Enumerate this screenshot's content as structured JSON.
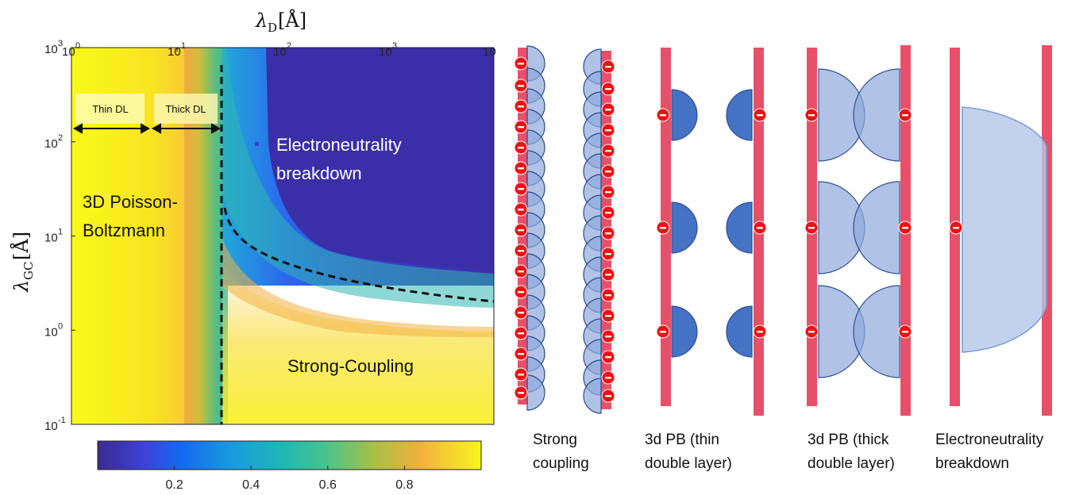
{
  "chart_data": {
    "type": "heatmap",
    "xlabel_symbol": "λ",
    "xlabel_sub": "D",
    "xlabel_unit": "[Å]",
    "ylabel_symbol": "λ",
    "ylabel_sub": "GC",
    "ylabel_unit": "[Å]",
    "xscale": "log",
    "yscale": "log",
    "xlim": [
      1,
      10000
    ],
    "ylim": [
      0.1,
      1000
    ],
    "x_ticks": [
      {
        "base": "10",
        "exp": "0"
      },
      {
        "base": "10",
        "exp": "1"
      },
      {
        "base": "10",
        "exp": "2"
      },
      {
        "base": "10",
        "exp": "3"
      },
      {
        "base": "10",
        "exp": ""
      }
    ],
    "y_ticks": [
      {
        "base": "10",
        "exp": "3"
      },
      {
        "base": "10",
        "exp": "2"
      },
      {
        "base": "10",
        "exp": "1"
      },
      {
        "base": "10",
        "exp": "0"
      },
      {
        "base": "10",
        "exp": "-1"
      }
    ],
    "colorbar_ticks": [
      "0.2",
      "0.4",
      "0.6",
      "0.8"
    ],
    "colorbar_range": [
      0,
      1
    ],
    "region_labels": {
      "pb_line1": "3D Poisson-",
      "pb_line2": "Boltzmann",
      "eb_line1": "Electroneutrality",
      "eb_line2": "breakdown",
      "sc": "Strong-Coupling"
    },
    "boxes": {
      "thin": "Thin DL",
      "thick": "Thick DL"
    }
  },
  "panels": [
    {
      "line1": "Strong",
      "line2": "coupling"
    },
    {
      "line1": "3d PB (thin",
      "line2": "double layer)"
    },
    {
      "line1": "3d PB (thick",
      "line2": "double layer)"
    },
    {
      "line1": "Electroneutrality",
      "line2": "breakdown"
    }
  ],
  "colors": {
    "wall": "#e8506a",
    "ion": "#ee1111",
    "cloud_dark": "#4472c4",
    "cloud_light": "#8eaadb",
    "cloud_pale": "#b4c7e7"
  }
}
